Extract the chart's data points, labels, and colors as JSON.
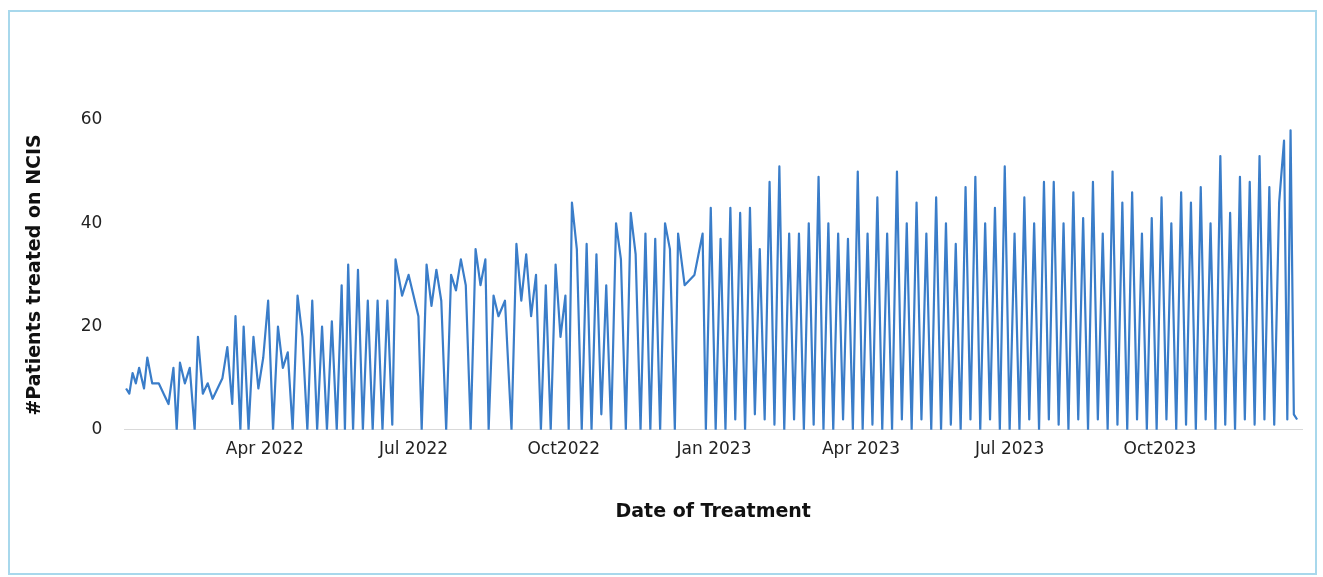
{
  "chart_data": {
    "type": "line",
    "xlabel": "Date of Treatment",
    "ylabel": "#Patients treated on NCIS",
    "xticks": [
      {
        "value": "2022-04-01",
        "label": "Apr 2022"
      },
      {
        "value": "2022-07-01",
        "label": "Jul 2022"
      },
      {
        "value": "2022-10-01",
        "label": "Oct2022"
      },
      {
        "value": "2023-01-01",
        "label": "Jan 2023"
      },
      {
        "value": "2023-04-01",
        "label": "Apr 2023"
      },
      {
        "value": "2023-07-01",
        "label": "Jul 2023"
      },
      {
        "value": "2023-10-01",
        "label": "Oct2023"
      }
    ],
    "xlim": [
      "2022-01-05",
      "2023-12-27"
    ],
    "ylim": [
      0,
      60
    ],
    "yticks": [
      0,
      20,
      40,
      60
    ],
    "grid": false,
    "legend": false,
    "marker": "none",
    "line_style": "solid",
    "series": [
      {
        "color": "#3a7dc9",
        "x": [
          "2022-01-06",
          "2022-01-08",
          "2022-01-10",
          "2022-01-12",
          "2022-01-14",
          "2022-01-17",
          "2022-01-19",
          "2022-01-22",
          "2022-01-26",
          "2022-01-29",
          "2022-02-01",
          "2022-02-04",
          "2022-02-06",
          "2022-02-08",
          "2022-02-11",
          "2022-02-14",
          "2022-02-17",
          "2022-02-19",
          "2022-02-22",
          "2022-02-25",
          "2022-02-28",
          "2022-03-03",
          "2022-03-06",
          "2022-03-09",
          "2022-03-12",
          "2022-03-14",
          "2022-03-17",
          "2022-03-19",
          "2022-03-22",
          "2022-03-25",
          "2022-03-28",
          "2022-03-31",
          "2022-04-03",
          "2022-04-06",
          "2022-04-09",
          "2022-04-12",
          "2022-04-15",
          "2022-04-18",
          "2022-04-21",
          "2022-04-24",
          "2022-04-27",
          "2022-04-30",
          "2022-05-03",
          "2022-05-06",
          "2022-05-09",
          "2022-05-12",
          "2022-05-15",
          "2022-05-18",
          "2022-05-20",
          "2022-05-22",
          "2022-05-25",
          "2022-05-28",
          "2022-05-31",
          "2022-06-03",
          "2022-06-06",
          "2022-06-09",
          "2022-06-12",
          "2022-06-15",
          "2022-06-18",
          "2022-06-20",
          "2022-06-24",
          "2022-06-28",
          "2022-07-01",
          "2022-07-04",
          "2022-07-06",
          "2022-07-09",
          "2022-07-12",
          "2022-07-15",
          "2022-07-18",
          "2022-07-21",
          "2022-07-24",
          "2022-07-27",
          "2022-07-30",
          "2022-08-02",
          "2022-08-05",
          "2022-08-08",
          "2022-08-11",
          "2022-08-14",
          "2022-08-16",
          "2022-08-19",
          "2022-08-22",
          "2022-08-26",
          "2022-08-30",
          "2022-09-02",
          "2022-09-05",
          "2022-09-08",
          "2022-09-11",
          "2022-09-14",
          "2022-09-17",
          "2022-09-20",
          "2022-09-23",
          "2022-09-26",
          "2022-09-29",
          "2022-10-02",
          "2022-10-04",
          "2022-10-06",
          "2022-10-09",
          "2022-10-12",
          "2022-10-15",
          "2022-10-18",
          "2022-10-21",
          "2022-10-24",
          "2022-10-27",
          "2022-10-30",
          "2022-11-02",
          "2022-11-05",
          "2022-11-08",
          "2022-11-11",
          "2022-11-14",
          "2022-11-17",
          "2022-11-20",
          "2022-11-23",
          "2022-11-26",
          "2022-11-29",
          "2022-12-02",
          "2022-12-05",
          "2022-12-08",
          "2022-12-10",
          "2022-12-14",
          "2022-12-20",
          "2022-12-25",
          "2022-12-27",
          "2022-12-30",
          "2023-01-02",
          "2023-01-05",
          "2023-01-08",
          "2023-01-11",
          "2023-01-14",
          "2023-01-17",
          "2023-01-20",
          "2023-01-23",
          "2023-01-26",
          "2023-01-29",
          "2023-02-01",
          "2023-02-04",
          "2023-02-07",
          "2023-02-10",
          "2023-02-13",
          "2023-02-16",
          "2023-02-19",
          "2023-02-22",
          "2023-02-25",
          "2023-02-28",
          "2023-03-03",
          "2023-03-06",
          "2023-03-09",
          "2023-03-12",
          "2023-03-15",
          "2023-03-18",
          "2023-03-21",
          "2023-03-24",
          "2023-03-27",
          "2023-03-30",
          "2023-04-02",
          "2023-04-05",
          "2023-04-08",
          "2023-04-11",
          "2023-04-14",
          "2023-04-17",
          "2023-04-20",
          "2023-04-23",
          "2023-04-26",
          "2023-04-29",
          "2023-05-02",
          "2023-05-05",
          "2023-05-08",
          "2023-05-11",
          "2023-05-14",
          "2023-05-17",
          "2023-05-20",
          "2023-05-23",
          "2023-05-26",
          "2023-05-29",
          "2023-06-01",
          "2023-06-04",
          "2023-06-07",
          "2023-06-10",
          "2023-06-13",
          "2023-06-16",
          "2023-06-19",
          "2023-06-22",
          "2023-06-25",
          "2023-06-28",
          "2023-07-01",
          "2023-07-04",
          "2023-07-07",
          "2023-07-10",
          "2023-07-13",
          "2023-07-16",
          "2023-07-19",
          "2023-07-22",
          "2023-07-25",
          "2023-07-28",
          "2023-07-31",
          "2023-08-03",
          "2023-08-06",
          "2023-08-09",
          "2023-08-12",
          "2023-08-15",
          "2023-08-18",
          "2023-08-21",
          "2023-08-24",
          "2023-08-27",
          "2023-08-30",
          "2023-09-02",
          "2023-09-05",
          "2023-09-08",
          "2023-09-11",
          "2023-09-14",
          "2023-09-17",
          "2023-09-20",
          "2023-09-23",
          "2023-09-26",
          "2023-09-29",
          "2023-10-02",
          "2023-10-05",
          "2023-10-08",
          "2023-10-11",
          "2023-10-14",
          "2023-10-17",
          "2023-10-20",
          "2023-10-23",
          "2023-10-26",
          "2023-10-29",
          "2023-11-01",
          "2023-11-04",
          "2023-11-07",
          "2023-11-10",
          "2023-11-13",
          "2023-11-16",
          "2023-11-19",
          "2023-11-22",
          "2023-11-25",
          "2023-11-28",
          "2023-12-01",
          "2023-12-04",
          "2023-12-07",
          "2023-12-10",
          "2023-12-13",
          "2023-12-16",
          "2023-12-18",
          "2023-12-20",
          "2023-12-22",
          "2023-12-24"
        ],
        "values": [
          8,
          7,
          11,
          9,
          12,
          8,
          14,
          9,
          9,
          7,
          5,
          12,
          0,
          13,
          9,
          12,
          0,
          18,
          7,
          9,
          6,
          8,
          10,
          16,
          5,
          22,
          0,
          20,
          0,
          18,
          8,
          14,
          25,
          0,
          20,
          12,
          15,
          0,
          26,
          18,
          0,
          25,
          0,
          20,
          0,
          21,
          0,
          28,
          0,
          32,
          0,
          31,
          0,
          25,
          0,
          25,
          0,
          25,
          1,
          33,
          26,
          30,
          26,
          22,
          0,
          32,
          24,
          31,
          25,
          0,
          30,
          27,
          33,
          28,
          0,
          35,
          28,
          33,
          0,
          26,
          22,
          25,
          0,
          36,
          25,
          34,
          22,
          30,
          0,
          28,
          0,
          32,
          18,
          26,
          0,
          44,
          35,
          0,
          36,
          0,
          34,
          3,
          28,
          0,
          40,
          33,
          0,
          42,
          34,
          0,
          38,
          0,
          37,
          0,
          40,
          35,
          0,
          38,
          28,
          30,
          38,
          0,
          43,
          0,
          37,
          0,
          43,
          2,
          42,
          0,
          43,
          3,
          35,
          2,
          48,
          1,
          51,
          0,
          38,
          2,
          38,
          0,
          40,
          1,
          49,
          0,
          40,
          0,
          38,
          2,
          37,
          0,
          50,
          0,
          38,
          1,
          45,
          0,
          38,
          0,
          50,
          2,
          40,
          0,
          44,
          2,
          38,
          0,
          45,
          0,
          40,
          1,
          36,
          0,
          47,
          2,
          49,
          0,
          40,
          2,
          43,
          0,
          51,
          0,
          38,
          0,
          45,
          2,
          40,
          0,
          48,
          2,
          48,
          1,
          40,
          0,
          46,
          2,
          41,
          0,
          48,
          2,
          38,
          0,
          50,
          1,
          44,
          0,
          46,
          2,
          38,
          0,
          41,
          0,
          45,
          2,
          40,
          0,
          46,
          1,
          44,
          0,
          47,
          2,
          40,
          0,
          53,
          1,
          42,
          0,
          49,
          2,
          48,
          1,
          53,
          2,
          47,
          1,
          44,
          56,
          2,
          58,
          3,
          2
        ]
      }
    ]
  }
}
